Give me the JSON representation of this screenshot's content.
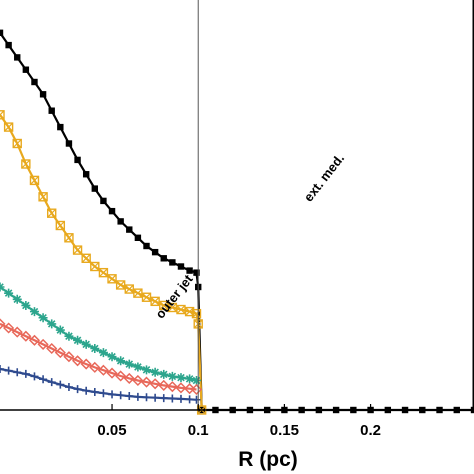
{
  "chart_data": {
    "type": "line",
    "xlabel": "R (pc)",
    "ylabel": "",
    "xlim": [
      -0.015,
      0.26
    ],
    "ylim": [
      0,
      1.0
    ],
    "x_ticks": [
      0.05,
      0.1,
      0.15,
      0.2
    ],
    "x_tick_labels": [
      "0.05",
      "0.1",
      "0.15",
      "0.2"
    ],
    "grid": false,
    "legend": "none",
    "boundary_x": 0.1,
    "annotations": [
      {
        "text": "outer jet",
        "x": 0.088,
        "y": 0.27,
        "rotation": -52
      },
      {
        "text": "ext. med.",
        "x": 0.175,
        "y": 0.56,
        "rotation": -52
      }
    ],
    "series": [
      {
        "color": "#000000",
        "marker": "square-filled",
        "x": [
          -0.015,
          -0.01,
          -0.005,
          0.0,
          0.005,
          0.01,
          0.015,
          0.02,
          0.025,
          0.03,
          0.035,
          0.04,
          0.045,
          0.05,
          0.055,
          0.06,
          0.065,
          0.07,
          0.075,
          0.08,
          0.085,
          0.09,
          0.095,
          0.099,
          0.1,
          0.102,
          0.11,
          0.12,
          0.13,
          0.14,
          0.15,
          0.16,
          0.17,
          0.18,
          0.19,
          0.2,
          0.21,
          0.22,
          0.23,
          0.24,
          0.25,
          0.26
        ],
        "y": [
          0.92,
          0.89,
          0.86,
          0.83,
          0.8,
          0.77,
          0.73,
          0.69,
          0.65,
          0.61,
          0.575,
          0.54,
          0.51,
          0.485,
          0.46,
          0.44,
          0.42,
          0.4,
          0.385,
          0.37,
          0.36,
          0.35,
          0.34,
          0.335,
          0.3,
          0.0,
          0.0,
          0.0,
          0.0,
          0.0,
          0.0,
          0.0,
          0.0,
          0.0,
          0.0,
          0.0,
          0.0,
          0.0,
          0.0,
          0.0,
          0.0,
          0.0
        ]
      },
      {
        "color": "#E8A91E",
        "marker": "square-open-x",
        "x": [
          -0.015,
          -0.01,
          -0.005,
          0.0,
          0.005,
          0.01,
          0.015,
          0.02,
          0.025,
          0.03,
          0.035,
          0.04,
          0.045,
          0.05,
          0.055,
          0.06,
          0.065,
          0.07,
          0.075,
          0.08,
          0.085,
          0.09,
          0.095,
          0.099,
          0.1,
          0.102
        ],
        "y": [
          0.72,
          0.69,
          0.65,
          0.6,
          0.56,
          0.52,
          0.48,
          0.45,
          0.42,
          0.39,
          0.37,
          0.35,
          0.335,
          0.32,
          0.305,
          0.295,
          0.285,
          0.275,
          0.265,
          0.255,
          0.25,
          0.245,
          0.24,
          0.235,
          0.21,
          0.0
        ]
      },
      {
        "color": "#2CA58D",
        "marker": "asterisk",
        "x": [
          -0.015,
          -0.01,
          -0.005,
          0.0,
          0.005,
          0.01,
          0.015,
          0.02,
          0.025,
          0.03,
          0.035,
          0.04,
          0.045,
          0.05,
          0.055,
          0.06,
          0.065,
          0.07,
          0.075,
          0.08,
          0.085,
          0.09,
          0.095,
          0.099
        ],
        "y": [
          0.3,
          0.285,
          0.27,
          0.255,
          0.24,
          0.225,
          0.21,
          0.195,
          0.18,
          0.17,
          0.16,
          0.15,
          0.14,
          0.13,
          0.12,
          0.112,
          0.105,
          0.098,
          0.092,
          0.087,
          0.082,
          0.079,
          0.076,
          0.072
        ]
      },
      {
        "color": "#E8685A",
        "marker": "diamond-open",
        "x": [
          -0.015,
          -0.01,
          -0.005,
          0.0,
          0.005,
          0.01,
          0.015,
          0.02,
          0.025,
          0.03,
          0.035,
          0.04,
          0.045,
          0.05,
          0.055,
          0.06,
          0.065,
          0.07,
          0.075,
          0.08,
          0.085,
          0.09,
          0.095,
          0.099
        ],
        "y": [
          0.21,
          0.2,
          0.19,
          0.18,
          0.17,
          0.16,
          0.15,
          0.14,
          0.13,
          0.12,
          0.112,
          0.104,
          0.097,
          0.09,
          0.083,
          0.077,
          0.072,
          0.068,
          0.064,
          0.06,
          0.057,
          0.054,
          0.052,
          0.05
        ]
      },
      {
        "color": "#2E4A8E",
        "marker": "plus",
        "x": [
          -0.015,
          -0.01,
          -0.005,
          0.0,
          0.005,
          0.01,
          0.015,
          0.02,
          0.025,
          0.03,
          0.035,
          0.04,
          0.045,
          0.05,
          0.055,
          0.06,
          0.065,
          0.07,
          0.075,
          0.08,
          0.085,
          0.09,
          0.095,
          0.099
        ],
        "y": [
          0.1,
          0.096,
          0.092,
          0.088,
          0.082,
          0.075,
          0.068,
          0.062,
          0.056,
          0.051,
          0.047,
          0.044,
          0.041,
          0.038,
          0.036,
          0.034,
          0.032,
          0.031,
          0.03,
          0.029,
          0.028,
          0.027,
          0.026,
          0.025
        ]
      }
    ]
  }
}
